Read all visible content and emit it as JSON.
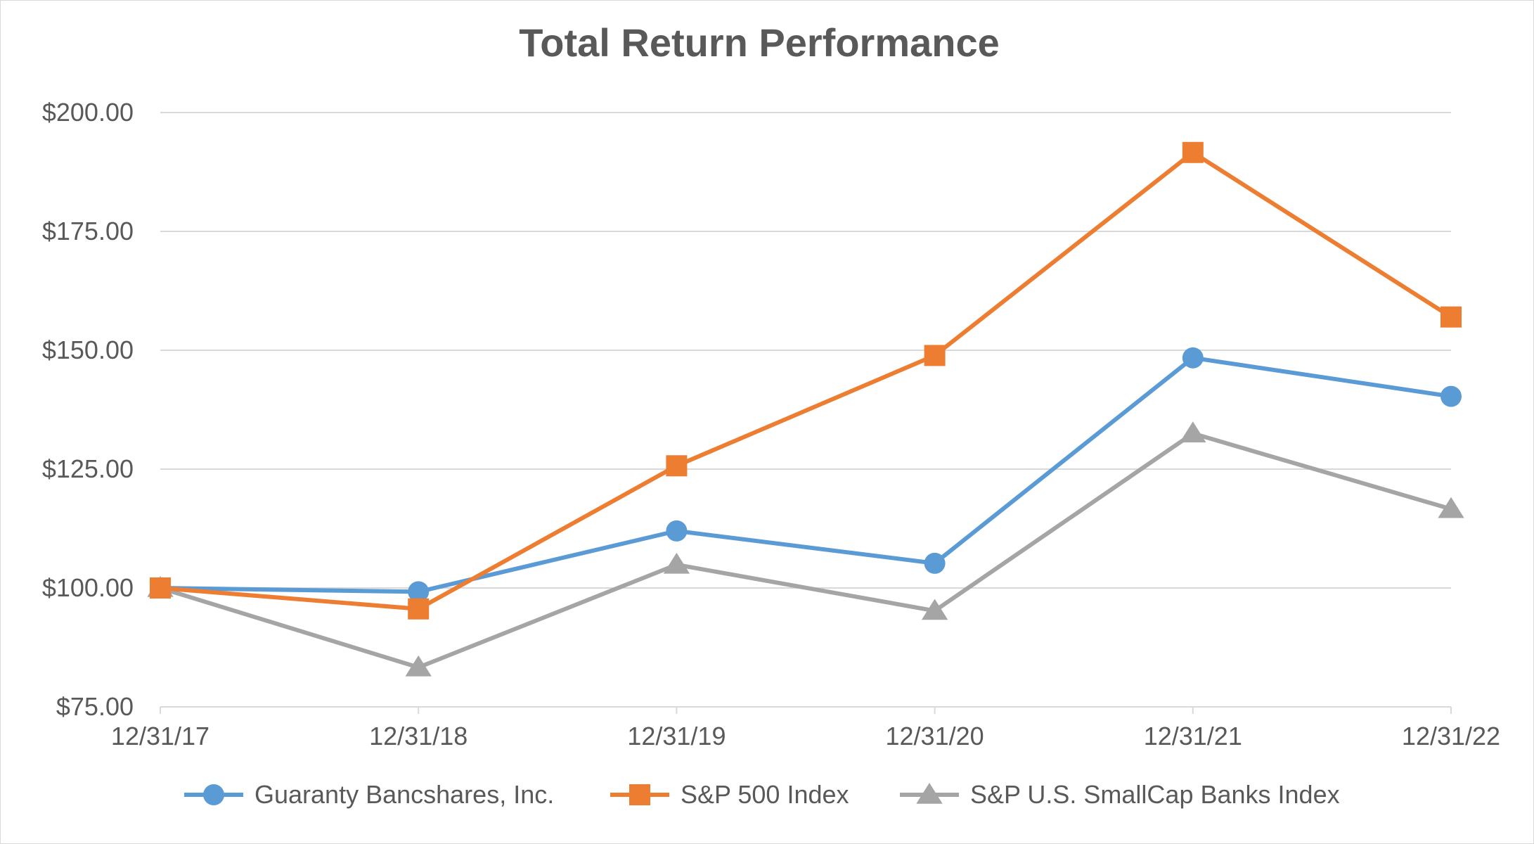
{
  "colors": {
    "guaranty": "#5b9bd5",
    "sp500": "#ed7d31",
    "smallcap": "#a5a5a5",
    "grid": "#d9d9d9",
    "text": "#595959"
  },
  "chart_data": {
    "type": "line",
    "title": "Total Return Performance",
    "xlabel": "",
    "ylabel": "",
    "categories": [
      "12/31/17",
      "12/31/18",
      "12/31/19",
      "12/31/20",
      "12/31/21",
      "12/31/22"
    ],
    "ylim": [
      75,
      200
    ],
    "yticks": [
      75,
      100,
      125,
      150,
      175,
      200
    ],
    "ytick_labels": [
      "$75.00",
      "$100.00",
      "$125.00",
      "$150.00",
      "$175.00",
      "$200.00"
    ],
    "grid": true,
    "legend_position": "bottom",
    "series": [
      {
        "name": "Guaranty Bancshares, Inc.",
        "marker": "circle",
        "color": "#5b9bd5",
        "values": [
          100.0,
          99.2,
          112.0,
          105.2,
          148.4,
          140.3
        ]
      },
      {
        "name": "S&P 500 Index",
        "marker": "square",
        "color": "#ed7d31",
        "values": [
          100.0,
          95.6,
          125.7,
          148.9,
          191.6,
          157.0
        ]
      },
      {
        "name": "S&P U.S. SmallCap Banks Index",
        "marker": "triangle",
        "color": "#a5a5a5",
        "values": [
          100.0,
          83.3,
          104.9,
          95.2,
          132.5,
          116.6
        ]
      }
    ]
  }
}
